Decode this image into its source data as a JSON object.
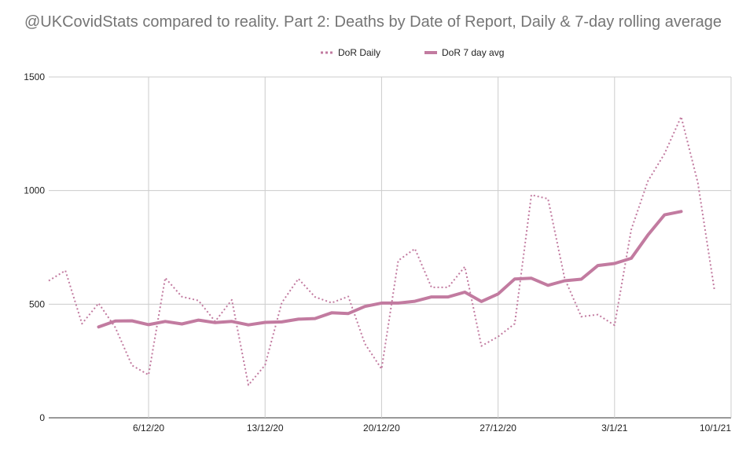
{
  "chart_data": {
    "type": "line",
    "title": "@UKCovidStats compared to reality. Part 2: Deaths by Date of Report, Daily & 7-day rolling average",
    "xlabel": "",
    "ylabel": "",
    "x": [
      "30/11/20",
      "1/12/20",
      "2/12/20",
      "3/12/20",
      "4/12/20",
      "5/12/20",
      "6/12/20",
      "7/12/20",
      "8/12/20",
      "9/12/20",
      "10/12/20",
      "11/12/20",
      "12/12/20",
      "13/12/20",
      "14/12/20",
      "15/12/20",
      "16/12/20",
      "17/12/20",
      "18/12/20",
      "19/12/20",
      "20/12/20",
      "21/12/20",
      "22/12/20",
      "23/12/20",
      "24/12/20",
      "25/12/20",
      "26/12/20",
      "27/12/20",
      "28/12/20",
      "29/12/20",
      "30/12/20",
      "31/12/20",
      "1/1/21",
      "2/1/21",
      "3/1/21",
      "4/1/21",
      "5/1/21",
      "6/1/21",
      "7/1/21",
      "8/1/21",
      "9/1/21",
      "10/1/21"
    ],
    "x_ticks": [
      "6/12/20",
      "13/12/20",
      "20/12/20",
      "27/12/20",
      "3/1/21",
      "10/1/21"
    ],
    "y_ticks": [
      0,
      500,
      1000,
      1500
    ],
    "ylim": [
      0,
      1500
    ],
    "grid": true,
    "legend_position": "top",
    "series": [
      {
        "name": "DoR Daily",
        "style": "dotted",
        "color": "#c27ba0",
        "values": [
          603,
          648,
          414,
          504,
          397,
          231,
          189,
          616,
          533,
          516,
          424,
          519,
          144,
          232,
          506,
          612,
          532,
          506,
          534,
          326,
          215,
          692,
          744,
          574,
          574,
          665,
          316,
          357,
          414,
          981,
          964,
          613,
          445,
          454,
          407,
          828,
          1041,
          1162,
          1325,
          1035,
          563,
          null
        ]
      },
      {
        "name": "DoR 7 day avg",
        "style": "solid",
        "color": "#c27ba0",
        "values": [
          null,
          null,
          null,
          400,
          426,
          427,
          410,
          424,
          413,
          430,
          419,
          424,
          409,
          420,
          422,
          434,
          437,
          462,
          459,
          490,
          505,
          505,
          513,
          532,
          532,
          553,
          512,
          545,
          611,
          614,
          583,
          603,
          610,
          670,
          679,
          702,
          804,
          893,
          908,
          null,
          null,
          null
        ]
      }
    ]
  }
}
